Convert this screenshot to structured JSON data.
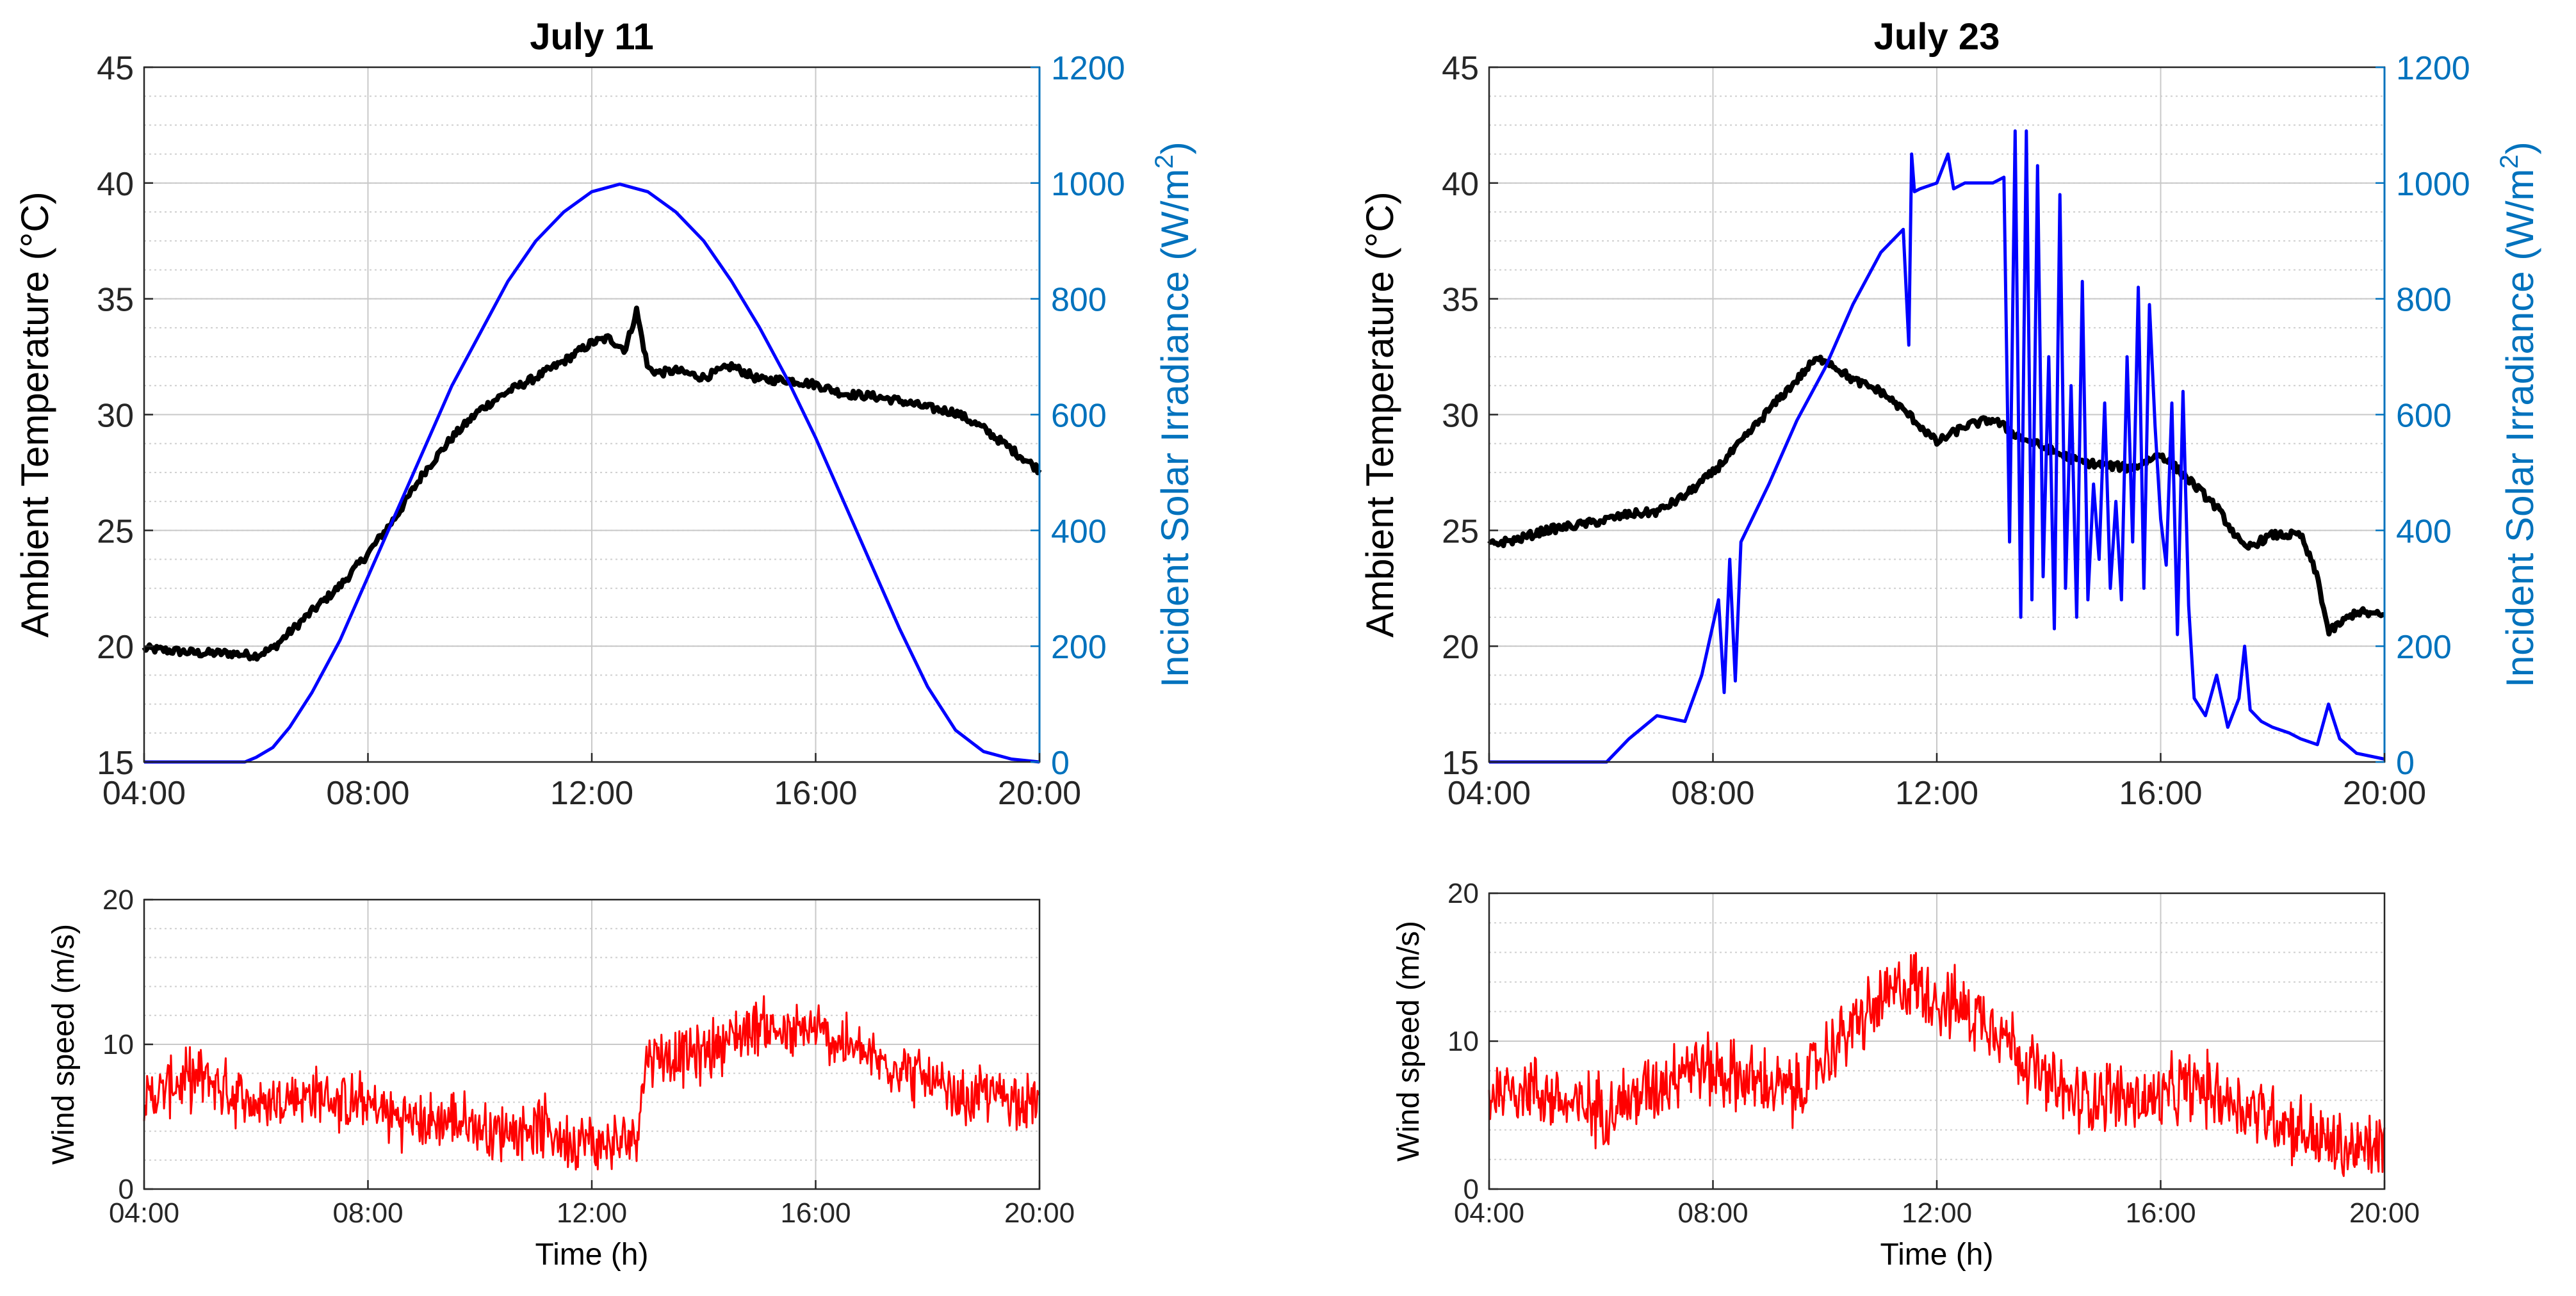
{
  "colors": {
    "temperature": "#000000",
    "irradiance": "#0000ff",
    "right_axis": "#0072bd",
    "wind": "#ff0000",
    "grid": "#c8c8c8"
  },
  "chart_data": [
    {
      "id": "july11_top",
      "type": "line",
      "title": "July 11",
      "xlabel": "",
      "ylabel": "Ambient Temperature (°C)",
      "ylabel_right": "Incident Solar Irradiance (W/m",
      "ylabel_right_sup": "2",
      "ylabel_right_end": ")",
      "xlim": [
        4,
        20
      ],
      "ylim": [
        15,
        45
      ],
      "ylim_right": [
        0,
        1200
      ],
      "xticks": [
        4,
        8,
        12,
        16,
        20
      ],
      "xtick_labels": [
        "04:00",
        "08:00",
        "12:00",
        "16:00",
        "20:00"
      ],
      "yticks": [
        15,
        20,
        25,
        30,
        35,
        40,
        45
      ],
      "ytick_labels": [
        "15",
        "20",
        "25",
        "30",
        "35",
        "40",
        "45"
      ],
      "yticks_right": [
        0,
        200,
        400,
        600,
        800,
        1000,
        1200
      ],
      "ytick_labels_right": [
        "0",
        "200",
        "400",
        "600",
        "800",
        "1000",
        "1200"
      ],
      "series": [
        {
          "name": "Ambient Temperature",
          "axis": "left",
          "x": [
            4,
            4.5,
            5,
            5.5,
            6,
            6.3,
            6.6,
            7,
            7.5,
            8,
            8.5,
            9,
            9.5,
            10,
            10.5,
            11,
            11.5,
            12,
            12.3,
            12.6,
            12.8,
            13,
            13.2,
            13.5,
            14,
            14.5,
            15,
            15.5,
            16,
            16.5,
            17,
            17.5,
            18,
            18.5,
            19,
            19.5,
            20
          ],
          "values": [
            19.9,
            19.8,
            19.7,
            19.7,
            19.6,
            19.9,
            20.6,
            21.5,
            22.6,
            24.0,
            25.6,
            27.5,
            29.0,
            30.2,
            31.0,
            31.6,
            32.3,
            33.1,
            33.3,
            32.8,
            34.5,
            32.0,
            31.8,
            31.9,
            31.6,
            32.1,
            31.5,
            31.5,
            31.3,
            30.9,
            30.8,
            30.6,
            30.3,
            30.1,
            29.4,
            28.5,
            27.6
          ]
        },
        {
          "name": "Incident Solar Irradiance",
          "axis": "right",
          "x": [
            4,
            5,
            5.8,
            6,
            6.3,
            6.6,
            7,
            7.5,
            8,
            8.5,
            9,
            9.5,
            10,
            10.5,
            11,
            11.5,
            12,
            12.5,
            13,
            13.5,
            14,
            14.5,
            15,
            15.5,
            16,
            16.5,
            17,
            17.5,
            18,
            18.5,
            19,
            19.5,
            20
          ],
          "values": [
            0,
            0,
            0,
            8,
            25,
            60,
            120,
            210,
            320,
            430,
            540,
            650,
            740,
            830,
            900,
            950,
            985,
            998,
            985,
            950,
            900,
            830,
            750,
            660,
            560,
            450,
            340,
            230,
            130,
            55,
            18,
            5,
            0
          ]
        }
      ]
    },
    {
      "id": "july11_wind",
      "type": "line",
      "title": "",
      "xlabel": "Time (h)",
      "ylabel": "Wind speed (m/s)",
      "xlim": [
        4,
        20
      ],
      "ylim": [
        0,
        20
      ],
      "xticks": [
        4,
        8,
        12,
        16,
        20
      ],
      "xtick_labels": [
        "04:00",
        "08:00",
        "12:00",
        "16:00",
        "20:00"
      ],
      "yticks": [
        0,
        10,
        20
      ],
      "ytick_labels": [
        "0",
        "10",
        "20"
      ],
      "series": [
        {
          "name": "Wind speed",
          "x": [
            4,
            4.5,
            5,
            5.5,
            6,
            6.5,
            7,
            7.5,
            8,
            8.5,
            9,
            9.5,
            10,
            10.5,
            11,
            11.5,
            12,
            12.5,
            12.8,
            13,
            13.5,
            14,
            14.5,
            15,
            15.5,
            16,
            16.5,
            17,
            17.5,
            18,
            18.5,
            19,
            19.5,
            20
          ],
          "values": [
            6.0,
            7.2,
            7.8,
            6.8,
            5.8,
            6.2,
            6.5,
            6.0,
            5.8,
            5.0,
            4.5,
            4.8,
            4.2,
            4.0,
            4.5,
            3.5,
            3.2,
            3.0,
            4.0,
            9.5,
            9.0,
            9.5,
            10.5,
            11.5,
            10.5,
            11.0,
            10.0,
            9.0,
            8.5,
            7.5,
            6.0,
            6.5,
            6.5,
            6.0
          ],
          "noise": 1.8
        }
      ]
    },
    {
      "id": "july23_top",
      "type": "line",
      "title": "July 23",
      "xlabel": "",
      "ylabel": "Ambient Temperature (°C)",
      "ylabel_right": "Incident Solar Irradiance (W/m",
      "ylabel_right_sup": "2",
      "ylabel_right_end": ")",
      "xlim": [
        4,
        20
      ],
      "ylim": [
        15,
        45
      ],
      "ylim_right": [
        0,
        1200
      ],
      "xticks": [
        4,
        8,
        12,
        16,
        20
      ],
      "xtick_labels": [
        "04:00",
        "08:00",
        "12:00",
        "16:00",
        "20:00"
      ],
      "yticks": [
        15,
        20,
        25,
        30,
        35,
        40,
        45
      ],
      "ytick_labels": [
        "15",
        "20",
        "25",
        "30",
        "35",
        "40",
        "45"
      ],
      "yticks_right": [
        0,
        200,
        400,
        600,
        800,
        1000,
        1200
      ],
      "ytick_labels_right": [
        "0",
        "200",
        "400",
        "600",
        "800",
        "1000",
        "1200"
      ],
      "series": [
        {
          "name": "Ambient Temperature",
          "axis": "left",
          "x": [
            4,
            4.5,
            5,
            5.5,
            6,
            6.5,
            7,
            7.5,
            8,
            8.5,
            9,
            9.5,
            9.8,
            10,
            10.5,
            11,
            11.5,
            12,
            12.5,
            13,
            13.5,
            14,
            14.5,
            15,
            15.5,
            16,
            16.5,
            17,
            17.5,
            18,
            18.5,
            18.8,
            19,
            19.5,
            20
          ],
          "values": [
            24.4,
            24.6,
            25.0,
            25.2,
            25.4,
            25.7,
            25.8,
            26.5,
            27.5,
            28.8,
            30.2,
            31.5,
            32.3,
            32.4,
            31.5,
            31.0,
            30.0,
            28.8,
            29.5,
            29.8,
            29.0,
            28.5,
            28.0,
            27.8,
            27.7,
            28.3,
            27.2,
            26.0,
            24.2,
            24.8,
            24.8,
            23.0,
            20.6,
            21.5,
            21.3
          ]
        },
        {
          "name": "Incident Solar Irradiance",
          "axis": "right",
          "x": [
            4,
            5,
            6.1,
            6.5,
            7,
            7.5,
            7.8,
            8.1,
            8.2,
            8.3,
            8.4,
            8.5,
            9,
            9.5,
            10,
            10.5,
            11,
            11.4,
            11.5,
            11.55,
            11.6,
            11.7,
            12,
            12.2,
            12.3,
            12.5,
            13,
            13.2,
            13.3,
            13.4,
            13.5,
            13.6,
            13.7,
            13.8,
            13.9,
            14,
            14.1,
            14.2,
            14.3,
            14.4,
            14.5,
            14.6,
            14.7,
            14.8,
            14.9,
            15,
            15.1,
            15.2,
            15.3,
            15.4,
            15.5,
            15.6,
            15.7,
            15.8,
            15.9,
            16,
            16.1,
            16.2,
            16.3,
            16.4,
            16.5,
            16.6,
            16.8,
            17,
            17.2,
            17.4,
            17.5,
            17.6,
            17.8,
            18,
            18.3,
            18.5,
            18.8,
            19,
            19.2,
            19.5,
            20
          ],
          "values": [
            0,
            0,
            0,
            40,
            80,
            70,
            150,
            280,
            120,
            350,
            140,
            380,
            480,
            590,
            680,
            790,
            880,
            920,
            720,
            1050,
            985,
            990,
            1000,
            1050,
            990,
            1000,
            1000,
            1010,
            380,
            1090,
            250,
            1090,
            280,
            1030,
            320,
            700,
            230,
            980,
            300,
            650,
            250,
            830,
            280,
            480,
            350,
            620,
            300,
            450,
            280,
            700,
            380,
            820,
            300,
            790,
            580,
            420,
            340,
            620,
            220,
            640,
            270,
            110,
            80,
            150,
            60,
            110,
            200,
            90,
            70,
            60,
            50,
            40,
            30,
            100,
            40,
            15,
            5
          ]
        }
      ]
    },
    {
      "id": "july23_wind",
      "type": "line",
      "title": "",
      "xlabel": "Time (h)",
      "ylabel": "Wind speed (m/s)",
      "xlim": [
        4,
        20
      ],
      "ylim": [
        0,
        20
      ],
      "xticks": [
        4,
        8,
        12,
        16,
        20
      ],
      "xtick_labels": [
        "04:00",
        "08:00",
        "12:00",
        "16:00",
        "20:00"
      ],
      "yticks": [
        0,
        10,
        20
      ],
      "ytick_labels": [
        "0",
        "10",
        "20"
      ],
      "series": [
        {
          "name": "Wind speed",
          "x": [
            4,
            4.5,
            5,
            5.5,
            6,
            6.5,
            7,
            7.5,
            8,
            8.5,
            9,
            9.5,
            10,
            10.5,
            11,
            11.5,
            12,
            12.5,
            13,
            13.5,
            14,
            14.5,
            15,
            15.5,
            16,
            16.5,
            17,
            17.5,
            18,
            18.5,
            19,
            19.5,
            20
          ],
          "values": [
            6.5,
            7.0,
            6.5,
            5.5,
            5.5,
            6.0,
            7.0,
            8.5,
            8.0,
            7.5,
            7.0,
            6.5,
            9.0,
            11.0,
            12.5,
            14.0,
            13.0,
            12.0,
            11.5,
            9.0,
            7.0,
            6.0,
            6.5,
            6.0,
            6.0,
            7.0,
            6.5,
            5.5,
            5.0,
            4.0,
            3.0,
            2.5,
            3.0
          ],
          "noise": 2.2
        }
      ]
    }
  ]
}
